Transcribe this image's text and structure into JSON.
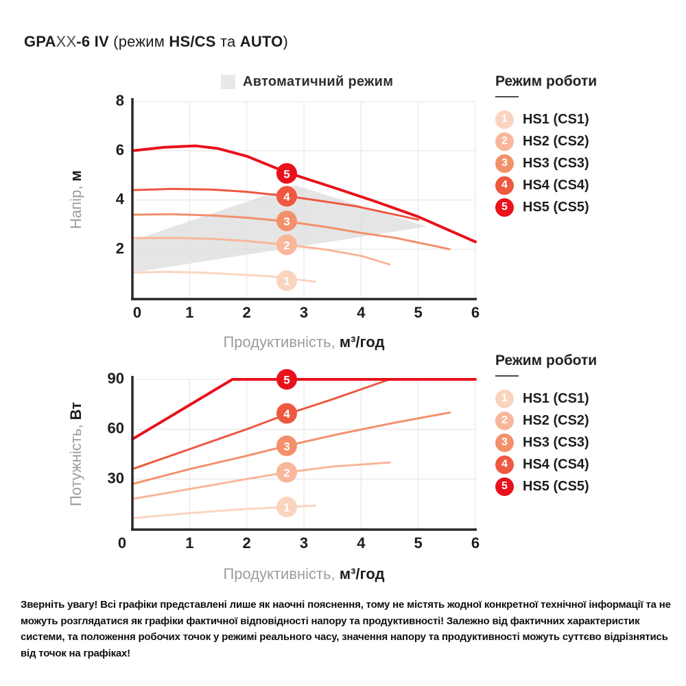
{
  "title": {
    "gpa": "GPA",
    "xx": "XX",
    "model": "-6 IV",
    "open": " (режим ",
    "hscs": "HS/CS",
    "ta": " та ",
    "auto": "AUTO",
    "close": ")"
  },
  "auto_region_legend": {
    "label": "Автоматичний режим",
    "swatch_color": "#e8e8e8"
  },
  "mode_legend": {
    "title": "Режим роботи",
    "items": [
      {
        "num": "1",
        "label": "HS1 (CS1)",
        "color": "#fbd4bf"
      },
      {
        "num": "2",
        "label": "HS2 (CS2)",
        "color": "#f8b69a"
      },
      {
        "num": "3",
        "label": "HS3 (CS3)",
        "color": "#f3906c"
      },
      {
        "num": "4",
        "label": "HS4 (CS4)",
        "color": "#ee5740"
      },
      {
        "num": "5",
        "label": "HS5 (CS5)",
        "color": "#e8111c"
      }
    ]
  },
  "footer": {
    "text": "Зверніть увагу! Всі графіки представлені лише як наочні пояснення, тому не містять жодної конкретної технічної інформації та не можуть розглядатися як графіки фактичної відповідності напору та продуктивності! Залежно від фактичних характеристик системи, та положення робочих точок у режимі реального часу, значення напору та продуктивності можуть суттєво відрізнятись від точок на графіках!"
  },
  "chart_data": [
    {
      "type": "line",
      "name": "head-vs-flow",
      "xlabel": {
        "gray": "Продуктивність,",
        "bold": "м³/год"
      },
      "ylabel": {
        "gray": "Напір,",
        "bold": "м"
      },
      "xlim": [
        0,
        6
      ],
      "ylim": [
        0,
        8
      ],
      "xticks": [
        "0",
        "1",
        "2",
        "3",
        "4",
        "5",
        "6"
      ],
      "yticks": [
        "2",
        "4",
        "6",
        "8"
      ],
      "grid": true,
      "legend_position": "right",
      "auto_region": {
        "label": "Автоматичний режим",
        "color": "#dedede",
        "polygon": [
          [
            0,
            1.05
          ],
          [
            0,
            2.35
          ],
          [
            2.85,
            4.6
          ],
          [
            5.15,
            2.92
          ]
        ]
      },
      "series": [
        {
          "name": "HS1 (CS1)",
          "badge": "1",
          "color": "#fbd4bf",
          "badge_at": [
            2.7,
            0.72
          ],
          "points": [
            [
              0,
              1.05
            ],
            [
              0.6,
              1.08
            ],
            [
              1.2,
              1.05
            ],
            [
              1.8,
              0.98
            ],
            [
              2.4,
              0.9
            ],
            [
              3.2,
              0.68
            ]
          ]
        },
        {
          "name": "HS2 (CS2)",
          "badge": "2",
          "color": "#f8b69a",
          "badge_at": [
            2.7,
            2.18
          ],
          "points": [
            [
              0,
              2.45
            ],
            [
              0.7,
              2.46
            ],
            [
              1.4,
              2.42
            ],
            [
              2,
              2.33
            ],
            [
              2.7,
              2.18
            ],
            [
              3.4,
              1.98
            ],
            [
              4,
              1.73
            ],
            [
              4.5,
              1.38
            ]
          ]
        },
        {
          "name": "HS3 (CS3)",
          "badge": "3",
          "color": "#f3906c",
          "badge_at": [
            2.7,
            3.15
          ],
          "points": [
            [
              0,
              3.4
            ],
            [
              0.7,
              3.42
            ],
            [
              1.4,
              3.37
            ],
            [
              2,
              3.28
            ],
            [
              2.7,
              3.13
            ],
            [
              3.4,
              2.9
            ],
            [
              4,
              2.66
            ],
            [
              4.6,
              2.46
            ],
            [
              5.1,
              2.22
            ],
            [
              5.55,
              2.0
            ]
          ]
        },
        {
          "name": "HS4 (CS4)",
          "badge": "4",
          "color": "#ee5740",
          "badge_at": [
            2.7,
            4.15
          ],
          "points": [
            [
              0,
              4.4
            ],
            [
              0.7,
              4.45
            ],
            [
              1.4,
              4.42
            ],
            [
              2,
              4.33
            ],
            [
              2.7,
              4.16
            ],
            [
              3.3,
              3.96
            ],
            [
              3.9,
              3.75
            ],
            [
              4.4,
              3.5
            ],
            [
              5.0,
              3.2
            ]
          ]
        },
        {
          "name": "HS5 (CS5)",
          "badge": "5",
          "color": "#e8111c",
          "badge_at": [
            2.7,
            5.08
          ],
          "points": [
            [
              0,
              6.0
            ],
            [
              0.55,
              6.14
            ],
            [
              1.1,
              6.2
            ],
            [
              1.5,
              6.09
            ],
            [
              2,
              5.78
            ],
            [
              2.7,
              5.12
            ],
            [
              3.5,
              4.52
            ],
            [
              4.2,
              3.98
            ],
            [
              5,
              3.32
            ],
            [
              6,
              2.3
            ]
          ]
        }
      ]
    },
    {
      "type": "line",
      "name": "power-vs-flow",
      "xlabel": {
        "gray": "Продуктивність,",
        "bold": "м³/год"
      },
      "ylabel": {
        "gray": "Потужність,",
        "bold": "Вт"
      },
      "xlim": [
        0,
        6
      ],
      "ylim": [
        0,
        90
      ],
      "xticks": [
        "0",
        "1",
        "2",
        "3",
        "4",
        "5",
        "6"
      ],
      "yticks": [
        "30",
        "60",
        "90"
      ],
      "grid": true,
      "legend_position": "right",
      "series": [
        {
          "name": "HS1 (CS1)",
          "badge": "1",
          "color": "#fbd4bf",
          "badge_at": [
            2.7,
            13.2
          ],
          "points": [
            [
              0,
              6.5
            ],
            [
              1,
              9.5
            ],
            [
              2,
              12
            ],
            [
              2.7,
              13.2
            ],
            [
              3.2,
              14
            ]
          ]
        },
        {
          "name": "HS2 (CS2)",
          "badge": "2",
          "color": "#f8b69a",
          "badge_at": [
            2.7,
            34
          ],
          "points": [
            [
              0,
              18
            ],
            [
              1,
              24
            ],
            [
              2,
              30
            ],
            [
              2.7,
              34
            ],
            [
              3.5,
              37.5
            ],
            [
              4.5,
              40
            ]
          ]
        },
        {
          "name": "HS3 (CS3)",
          "badge": "3",
          "color": "#f3906c",
          "badge_at": [
            2.7,
            50
          ],
          "points": [
            [
              0,
              27
            ],
            [
              1,
              36
            ],
            [
              2,
              44
            ],
            [
              2.7,
              50
            ],
            [
              3.6,
              57
            ],
            [
              4.6,
              64
            ],
            [
              5.55,
              70
            ]
          ]
        },
        {
          "name": "HS4 (CS4)",
          "badge": "4",
          "color": "#ee5740",
          "badge_at": [
            2.7,
            69.5
          ],
          "points": [
            [
              0,
              36
            ],
            [
              1,
              48
            ],
            [
              2,
              60
            ],
            [
              2.7,
              69
            ],
            [
              3.5,
              78
            ],
            [
              4.5,
              90
            ]
          ]
        },
        {
          "name": "HS5 (CS5)",
          "badge": "5",
          "color": "#e8111c",
          "badge_at": [
            2.7,
            90
          ],
          "points": [
            [
              0,
              54
            ],
            [
              0.9,
              72.5
            ],
            [
              1.75,
              90
            ],
            [
              6,
              90
            ]
          ]
        }
      ]
    }
  ]
}
